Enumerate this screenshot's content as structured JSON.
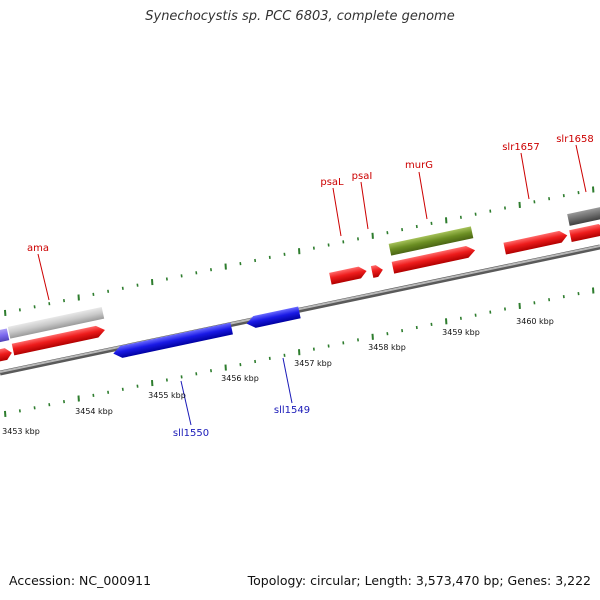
{
  "title": "Synechocystis sp. PCC 6803, complete genome",
  "footer": {
    "accession": "Accession: NC_000911",
    "summary": "Topology: circular; Length: 3,573,470 bp; Genes: 3,222"
  },
  "colors": {
    "backbone": "#8a8a8a",
    "tick": "#2e7d2e",
    "forward_gene": "#ee1c1c",
    "reverse_gene": "#1a1ae6",
    "label_forward": "#cc0000",
    "label_reverse": "#1a1ab8",
    "rna_olive": "#6b8e23",
    "grey_feature": "#c8c8c8",
    "dark_grey_feature": "#707070",
    "purple_feature": "#7b68ee"
  },
  "scale_labels": [
    "3453 kbp",
    "3454 kbp",
    "3455 kbp",
    "3456 kbp",
    "3457 kbp",
    "3458 kbp",
    "3459 kbp",
    "3460 kbp"
  ],
  "gene_labels": [
    {
      "text": "ama",
      "strand": "forward"
    },
    {
      "text": "psaL",
      "strand": "forward"
    },
    {
      "text": "psaI",
      "strand": "forward"
    },
    {
      "text": "murG",
      "strand": "forward"
    },
    {
      "text": "slr1657",
      "strand": "forward"
    },
    {
      "text": "slr1658",
      "strand": "forward"
    },
    {
      "text": "sll1550",
      "strand": "reverse"
    },
    {
      "text": "sll1549",
      "strand": "reverse"
    }
  ]
}
